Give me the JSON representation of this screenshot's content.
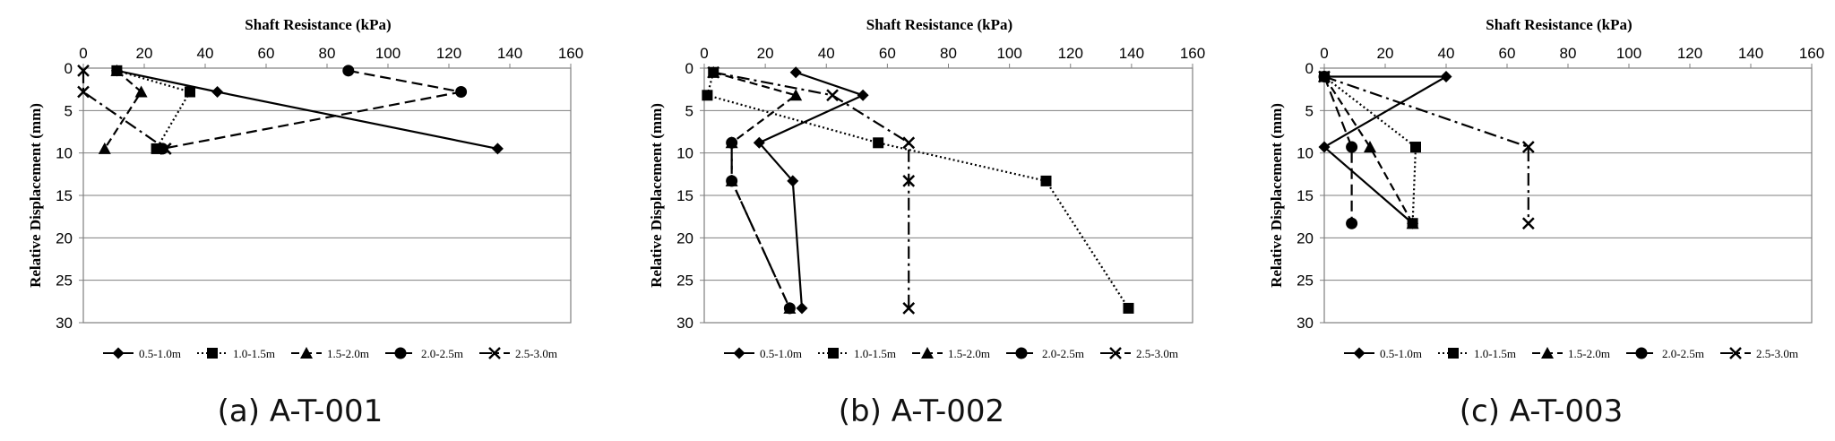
{
  "legend_items": [
    {
      "label": "0.5-1.0m",
      "marker": "diamond",
      "dash": "solid"
    },
    {
      "label": "1.0-1.5m",
      "marker": "square",
      "dash": "dotted"
    },
    {
      "label": "1.5-2.0m",
      "marker": "triangle",
      "dash": "dashed"
    },
    {
      "label": "2.0-2.5m",
      "marker": "circle",
      "dash": "longdash"
    },
    {
      "label": "2.5-3.0m",
      "marker": "cross",
      "dash": "dashdot"
    }
  ],
  "chart_data": [
    {
      "type": "line",
      "caption": "(a)  A-T-001",
      "xlabel": "Shaft Resistance (kPa)",
      "ylabel": "Relative Displacement (mm)",
      "xlim": [
        0,
        160
      ],
      "ylim": [
        0,
        30
      ],
      "y_inverted": true,
      "x_axis_position": "top",
      "xticks": [
        0,
        20,
        40,
        60,
        80,
        100,
        120,
        140,
        160
      ],
      "yticks": [
        0,
        5,
        10,
        15,
        20,
        25,
        30
      ],
      "grid": "horizontal",
      "legend": "bottom",
      "series": [
        {
          "name": "0.5-1.0m",
          "points": [
            [
              11,
              0.3
            ],
            [
              44,
              2.8
            ],
            [
              136,
              9.5
            ]
          ]
        },
        {
          "name": "1.0-1.5m",
          "points": [
            [
              11,
              0.3
            ],
            [
              35,
              2.8
            ],
            [
              24,
              9.5
            ]
          ]
        },
        {
          "name": "1.5-2.0m",
          "points": [
            [
              11,
              0.3
            ],
            [
              19,
              2.8
            ],
            [
              7,
              9.5
            ]
          ]
        },
        {
          "name": "2.0-2.5m",
          "points": [
            [
              87,
              0.3
            ],
            [
              124,
              2.8
            ],
            [
              26,
              9.5
            ]
          ]
        },
        {
          "name": "2.5-3.0m",
          "points": [
            [
              0,
              0.3
            ],
            [
              0,
              2.8
            ],
            [
              27,
              9.5
            ]
          ]
        }
      ]
    },
    {
      "type": "line",
      "caption": "(b)  A-T-002",
      "xlabel": "Shaft Resistance (kPa)",
      "ylabel": "Relative Displacement (mm)",
      "xlim": [
        0,
        160
      ],
      "ylim": [
        0,
        30
      ],
      "y_inverted": true,
      "x_axis_position": "top",
      "xticks": [
        0,
        20,
        40,
        60,
        80,
        100,
        120,
        140,
        160
      ],
      "yticks": [
        0,
        5,
        10,
        15,
        20,
        25,
        30
      ],
      "grid": "horizontal",
      "legend": "bottom",
      "series": [
        {
          "name": "0.5-1.0m",
          "points": [
            [
              30,
              0.5
            ],
            [
              52,
              3.2
            ],
            [
              18,
              8.8
            ],
            [
              29,
              13.3
            ],
            [
              32,
              28.3
            ]
          ]
        },
        {
          "name": "1.0-1.5m",
          "points": [
            [
              3,
              0.5
            ],
            [
              1,
              3.2
            ],
            [
              57,
              8.8
            ],
            [
              112,
              13.3
            ],
            [
              139,
              28.3
            ]
          ]
        },
        {
          "name": "1.5-2.0m",
          "points": [
            [
              3,
              0.5
            ],
            [
              30,
              3.2
            ],
            [
              9,
              8.8
            ],
            [
              9,
              13.3
            ],
            [
              28,
              28.3
            ]
          ]
        },
        {
          "name": "2.0-2.5m",
          "points": [
            [
              9,
              8.8
            ],
            [
              9,
              13.3
            ],
            [
              28,
              28.3
            ]
          ]
        },
        {
          "name": "2.5-3.0m",
          "points": [
            [
              3,
              0.5
            ],
            [
              42,
              3.2
            ],
            [
              67,
              8.8
            ],
            [
              67,
              13.3
            ],
            [
              67,
              28.3
            ]
          ]
        }
      ]
    },
    {
      "type": "line",
      "caption": "(c)  A-T-003",
      "xlabel": "Shaft Resistance (kPa)",
      "ylabel": "Relative Displacement (mm)",
      "xlim": [
        0,
        160
      ],
      "ylim": [
        0,
        30
      ],
      "y_inverted": true,
      "x_axis_position": "top",
      "xticks": [
        0,
        20,
        40,
        60,
        80,
        100,
        120,
        140,
        160
      ],
      "yticks": [
        0,
        5,
        10,
        15,
        20,
        25,
        30
      ],
      "grid": "horizontal",
      "legend": "bottom",
      "series": [
        {
          "name": "0.5-1.0m",
          "points": [
            [
              0,
              1
            ],
            [
              40,
              1
            ],
            [
              0,
              9.3
            ],
            [
              29,
              18.3
            ]
          ]
        },
        {
          "name": "1.0-1.5m",
          "points": [
            [
              0,
              1
            ],
            [
              30,
              9.3
            ],
            [
              29,
              18.3
            ]
          ]
        },
        {
          "name": "1.5-2.0m",
          "points": [
            [
              0,
              1
            ],
            [
              15,
              9.3
            ],
            [
              29,
              18.3
            ]
          ]
        },
        {
          "name": "2.0-2.5m",
          "points": [
            [
              0,
              1
            ],
            [
              9,
              9.3
            ],
            [
              9,
              18.3
            ]
          ]
        },
        {
          "name": "2.5-3.0m",
          "points": [
            [
              0,
              1
            ],
            [
              67,
              9.3
            ],
            [
              67,
              18.3
            ]
          ]
        }
      ]
    }
  ]
}
